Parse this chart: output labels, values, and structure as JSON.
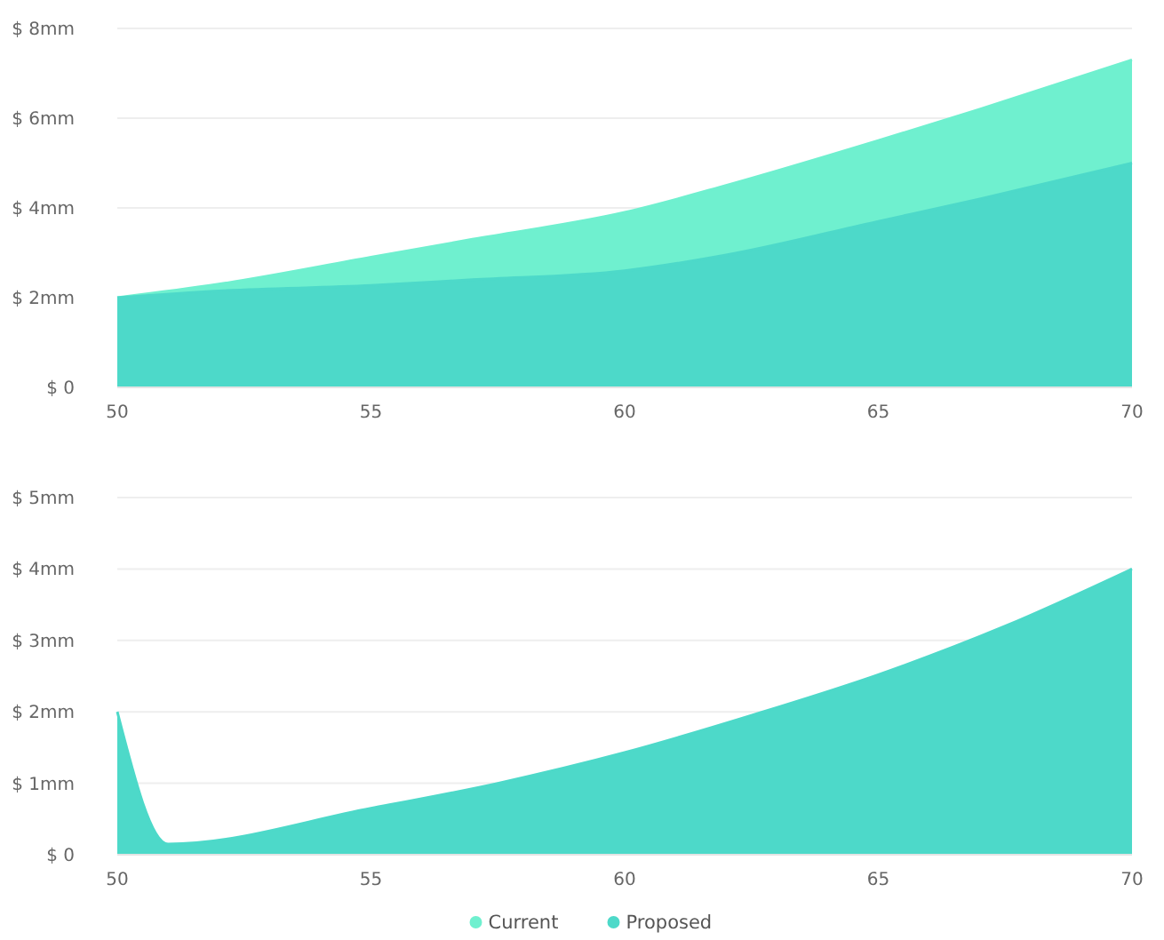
{
  "chart_data": [
    {
      "type": "area",
      "x": [
        50,
        52,
        55,
        57,
        60,
        62,
        65,
        67,
        70
      ],
      "series": [
        {
          "name": "Current",
          "color": "#6ff0cf",
          "values": [
            2.0,
            2.3,
            2.9,
            3.3,
            3.9,
            4.5,
            5.5,
            6.2,
            7.3
          ]
        },
        {
          "name": "Proposed",
          "color": "#4dd9c9",
          "values": [
            2.0,
            2.15,
            2.27,
            2.4,
            2.6,
            2.95,
            3.7,
            4.2,
            5.0
          ]
        }
      ],
      "xlim": [
        50,
        70
      ],
      "xticks": [
        50,
        55,
        60,
        65,
        70
      ],
      "ylim": [
        0,
        8
      ],
      "yticks": [
        {
          "value": 0,
          "label": "$ 0"
        },
        {
          "value": 2,
          "label": "$ 2mm"
        },
        {
          "value": 4,
          "label": "$ 4mm"
        },
        {
          "value": 6,
          "label": "$ 6mm"
        },
        {
          "value": 8,
          "label": "$ 8mm"
        }
      ],
      "grid": "y",
      "legend": "bottom"
    },
    {
      "type": "area",
      "x": [
        50,
        51,
        55,
        57.5,
        60,
        62.5,
        65,
        67.5,
        70
      ],
      "series": [
        {
          "color": "#4dd9c9",
          "values": [
            2.0,
            0.15,
            0.65,
            1.0,
            1.43,
            1.95,
            2.52,
            3.2,
            4.0
          ]
        }
      ],
      "xlim": [
        50,
        70
      ],
      "xticks": [
        50,
        55,
        60,
        65,
        70
      ],
      "ylim": [
        0,
        5
      ],
      "yticks": [
        {
          "value": 0,
          "label": "$ 0"
        },
        {
          "value": 1,
          "label": "$ 1mm"
        },
        {
          "value": 2,
          "label": "$ 2mm"
        },
        {
          "value": 3,
          "label": "$ 3mm"
        },
        {
          "value": 4,
          "label": "$ 4mm"
        },
        {
          "value": 5,
          "label": "$ 5mm"
        }
      ],
      "grid": "y"
    }
  ]
}
